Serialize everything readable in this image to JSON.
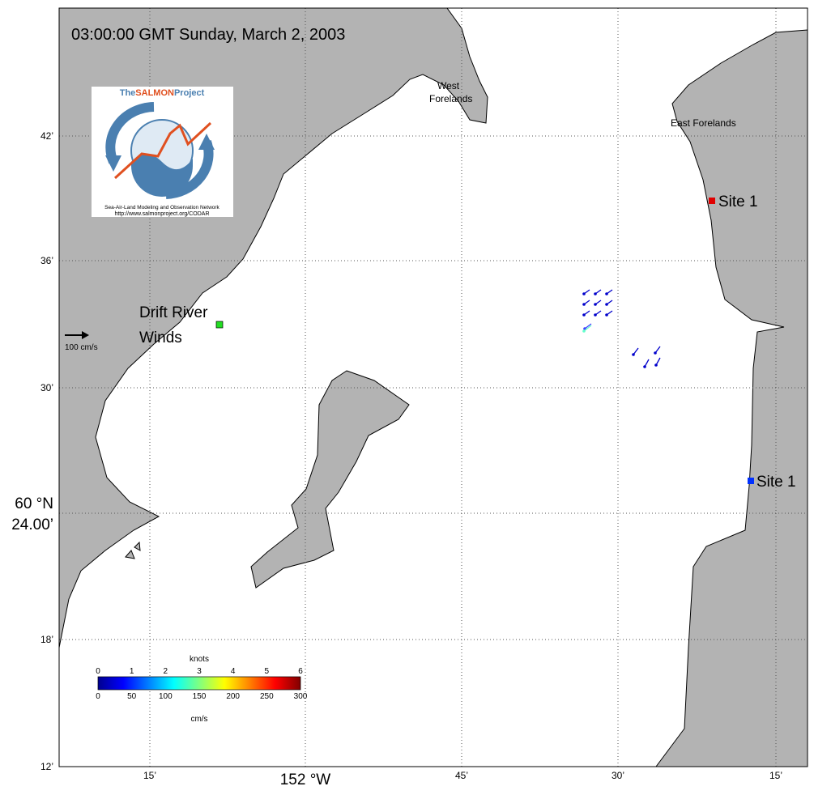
{
  "map": {
    "title": "03:00:00 GMT Sunday, March 2, 2003",
    "places": {
      "west_forelands": [
        "West",
        "Forelands"
      ],
      "east_forelands": "East Forelands"
    },
    "sites": [
      {
        "label": "Site 1",
        "color": "#e00000"
      },
      {
        "label": "Site 1",
        "color": "#0030ff"
      }
    ],
    "winds": [
      "Drift River",
      "Winds"
    ],
    "scale_label": "100 cm/s",
    "y_labels": [
      "42’",
      "36’",
      "30’",
      "60 °N",
      "24.00’",
      "18’",
      "12’"
    ],
    "x_labels": [
      "15’",
      "152 °W",
      "45’",
      "30’",
      "15’"
    ],
    "colorbar": {
      "top_title": "knots",
      "top_ticks": [
        "0",
        "1",
        "2",
        "3",
        "4",
        "5",
        "6"
      ],
      "bottom_ticks": [
        "0",
        "50",
        "100",
        "150",
        "200",
        "250",
        "300"
      ],
      "bottom_title": "cm/s"
    },
    "logo": {
      "name_a": "The",
      "name_b": "SALMON",
      "name_c": "Project",
      "subtitle": "Sea-Air-Land Modeling and Observation Network",
      "url": "http://www.salmonproject.org/CODAR"
    }
  }
}
